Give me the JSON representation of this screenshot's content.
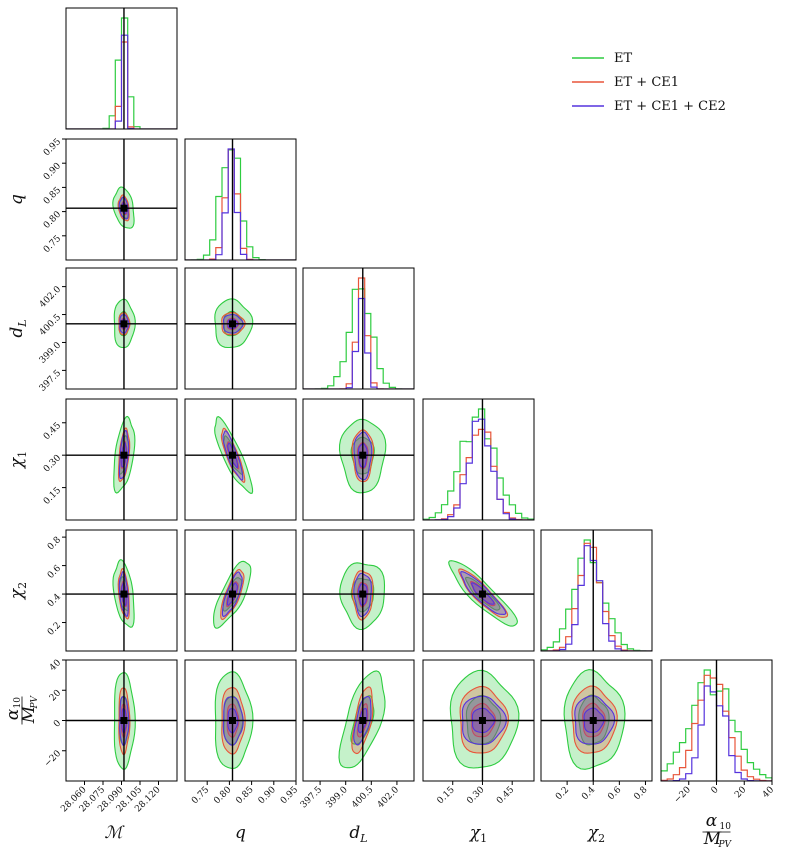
{
  "chart_data": {
    "type": "corner",
    "parameters": [
      {
        "key": "Mc",
        "label": "ℳ",
        "truth": 28.092,
        "range": [
          28.045,
          28.135
        ],
        "ticks": [
          28.06,
          28.075,
          28.09,
          28.105,
          28.12
        ],
        "ticklabels": [
          "28.060",
          "28.075",
          "28.090",
          "28.105",
          "28.120"
        ]
      },
      {
        "key": "q",
        "label": "q",
        "truth": 0.807,
        "range": [
          0.7,
          0.95
        ],
        "ticks": [
          0.75,
          0.8,
          0.85,
          0.9,
          0.95
        ],
        "ticklabels": [
          "0.75",
          "0.80",
          "0.85",
          "0.90",
          "0.95"
        ]
      },
      {
        "key": "dL",
        "label": "dL",
        "truth": 400.0,
        "range": [
          396.5,
          403.0
        ],
        "ticks": [
          397.5,
          399.0,
          400.5,
          402.0
        ],
        "ticklabels": [
          "397.5",
          "399.0",
          "400.5",
          "402.0"
        ]
      },
      {
        "key": "chi1",
        "label": "χ1",
        "truth": 0.3,
        "range": [
          0.0,
          0.56
        ],
        "ticks": [
          0.15,
          0.3,
          0.45
        ],
        "ticklabels": [
          "0.15",
          "0.30",
          "0.45"
        ]
      },
      {
        "key": "chi2",
        "label": "χ2",
        "truth": 0.4,
        "range": [
          0.0,
          0.85
        ],
        "ticks": [
          0.2,
          0.4,
          0.6,
          0.8
        ],
        "ticklabels": [
          "0.2",
          "0.4",
          "0.6",
          "0.8"
        ]
      },
      {
        "key": "alpha",
        "label": "α10 / MPV",
        "truth": 0.0,
        "range": [
          -40,
          40
        ],
        "ticks": [
          -20,
          0,
          20,
          40
        ],
        "ticklabels": [
          "−20",
          "0",
          "20",
          "40"
        ]
      }
    ],
    "series": [
      {
        "name": "ET",
        "color": "#2ecc40",
        "sigma": {
          "Mc": 0.0042,
          "q": 0.021,
          "dL": 0.65,
          "chi1": 0.085,
          "chi2": 0.115,
          "alpha": 16
        }
      },
      {
        "name": "ET + CE1",
        "color": "#e8553a",
        "sigma": {
          "Mc": 0.0022,
          "q": 0.013,
          "dL": 0.3,
          "chi1": 0.06,
          "chi2": 0.085,
          "alpha": 11
        }
      },
      {
        "name": "ET + CE1 + CE2",
        "color": "#5533dd",
        "sigma": {
          "Mc": 0.0018,
          "q": 0.011,
          "dL": 0.25,
          "chi1": 0.055,
          "chi2": 0.075,
          "alpha": 8
        }
      }
    ],
    "correlations": {
      "Mc-q": -0.3,
      "Mc-chi1": 0.45,
      "Mc-chi2": -0.4,
      "q-chi1": -0.85,
      "q-chi2": 0.75,
      "chi1-chi2": -0.9,
      "dL-alpha": 0.6,
      "dL-chi1": 0.0
    },
    "legend_position": "top-right"
  }
}
